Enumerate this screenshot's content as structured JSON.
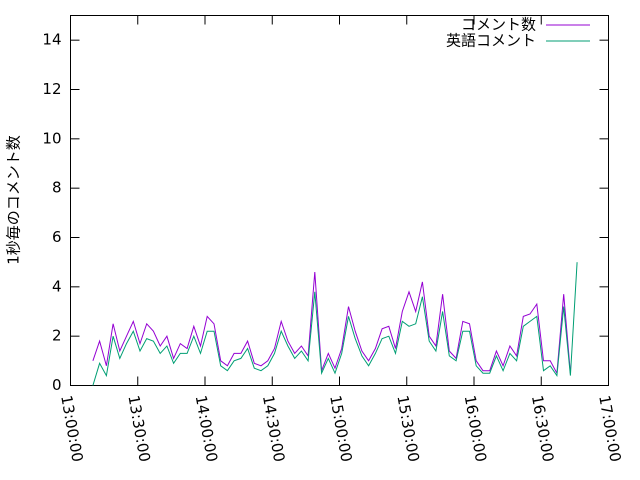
{
  "chart_data": {
    "type": "line",
    "ylabel": "1秒毎のコメント数",
    "x": [
      "13:10:00",
      "13:13:00",
      "13:16:00",
      "13:19:00",
      "13:22:00",
      "13:25:00",
      "13:28:00",
      "13:31:00",
      "13:34:00",
      "13:37:00",
      "13:40:00",
      "13:43:00",
      "13:46:00",
      "13:49:00",
      "13:52:00",
      "13:55:00",
      "13:58:00",
      "14:01:00",
      "14:04:00",
      "14:07:00",
      "14:10:00",
      "14:13:00",
      "14:16:00",
      "14:19:00",
      "14:22:00",
      "14:25:00",
      "14:28:00",
      "14:31:00",
      "14:34:00",
      "14:37:00",
      "14:40:00",
      "14:43:00",
      "14:46:00",
      "14:49:00",
      "14:52:00",
      "14:55:00",
      "14:58:00",
      "15:01:00",
      "15:04:00",
      "15:07:00",
      "15:10:00",
      "15:13:00",
      "15:16:00",
      "15:19:00",
      "15:22:00",
      "15:25:00",
      "15:28:00",
      "15:31:00",
      "15:34:00",
      "15:37:00",
      "15:40:00",
      "15:43:00",
      "15:46:00",
      "15:49:00",
      "15:52:00",
      "15:55:00",
      "15:58:00",
      "16:01:00",
      "16:04:00",
      "16:07:00",
      "16:10:00",
      "16:13:00",
      "16:16:00",
      "16:19:00",
      "16:22:00",
      "16:25:00",
      "16:28:00",
      "16:31:00",
      "16:34:00",
      "16:37:00",
      "16:40:00",
      "16:43:00",
      "16:46:00"
    ],
    "series": [
      {
        "name": "コメント数",
        "color": "#9400d3",
        "values": [
          1.0,
          1.8,
          0.8,
          2.5,
          1.4,
          2.0,
          2.6,
          1.7,
          2.5,
          2.2,
          1.6,
          2.0,
          1.1,
          1.7,
          1.5,
          2.4,
          1.6,
          2.8,
          2.5,
          1.0,
          0.8,
          1.3,
          1.3,
          1.8,
          0.9,
          0.8,
          1.0,
          1.5,
          2.6,
          1.8,
          1.3,
          1.6,
          1.2,
          4.6,
          0.6,
          1.3,
          0.7,
          1.5,
          3.2,
          2.2,
          1.4,
          1.0,
          1.5,
          2.3,
          2.4,
          1.5,
          3.0,
          3.8,
          3.0,
          4.2,
          2.0,
          1.6,
          3.7,
          1.4,
          1.1,
          2.6,
          2.5,
          1.0,
          0.6,
          0.6,
          1.4,
          0.8,
          1.6,
          1.2,
          2.8,
          2.9,
          3.3,
          1.0,
          1.0,
          0.5,
          3.7,
          0.5,
          null
        ]
      },
      {
        "name": "英語コメント",
        "color": "#009e73",
        "values": [
          0.0,
          0.9,
          0.4,
          2.0,
          1.1,
          1.7,
          2.2,
          1.4,
          1.9,
          1.8,
          1.3,
          1.6,
          0.9,
          1.3,
          1.3,
          2.0,
          1.3,
          2.2,
          2.2,
          0.8,
          0.6,
          1.0,
          1.1,
          1.5,
          0.7,
          0.6,
          0.8,
          1.3,
          2.2,
          1.6,
          1.1,
          1.4,
          1.0,
          3.8,
          0.5,
          1.1,
          0.5,
          1.3,
          2.8,
          1.9,
          1.2,
          0.8,
          1.3,
          1.9,
          2.0,
          1.3,
          2.6,
          2.4,
          2.5,
          3.6,
          1.8,
          1.4,
          3.0,
          1.2,
          1.0,
          2.2,
          2.2,
          0.8,
          0.5,
          0.5,
          1.2,
          0.6,
          1.3,
          1.0,
          2.4,
          2.6,
          2.8,
          0.6,
          0.8,
          0.4,
          3.2,
          0.4,
          5.0
        ]
      }
    ],
    "xlim": [
      "13:00:00",
      "17:00:00"
    ],
    "xticks": [
      "13:00:00",
      "13:30:00",
      "14:00:00",
      "14:30:00",
      "15:00:00",
      "15:30:00",
      "16:00:00",
      "16:30:00",
      "17:00:00"
    ],
    "ylim": [
      0,
      15
    ],
    "yticks": [
      0,
      2,
      4,
      6,
      8,
      10,
      12,
      14
    ],
    "legend": "top-right"
  }
}
